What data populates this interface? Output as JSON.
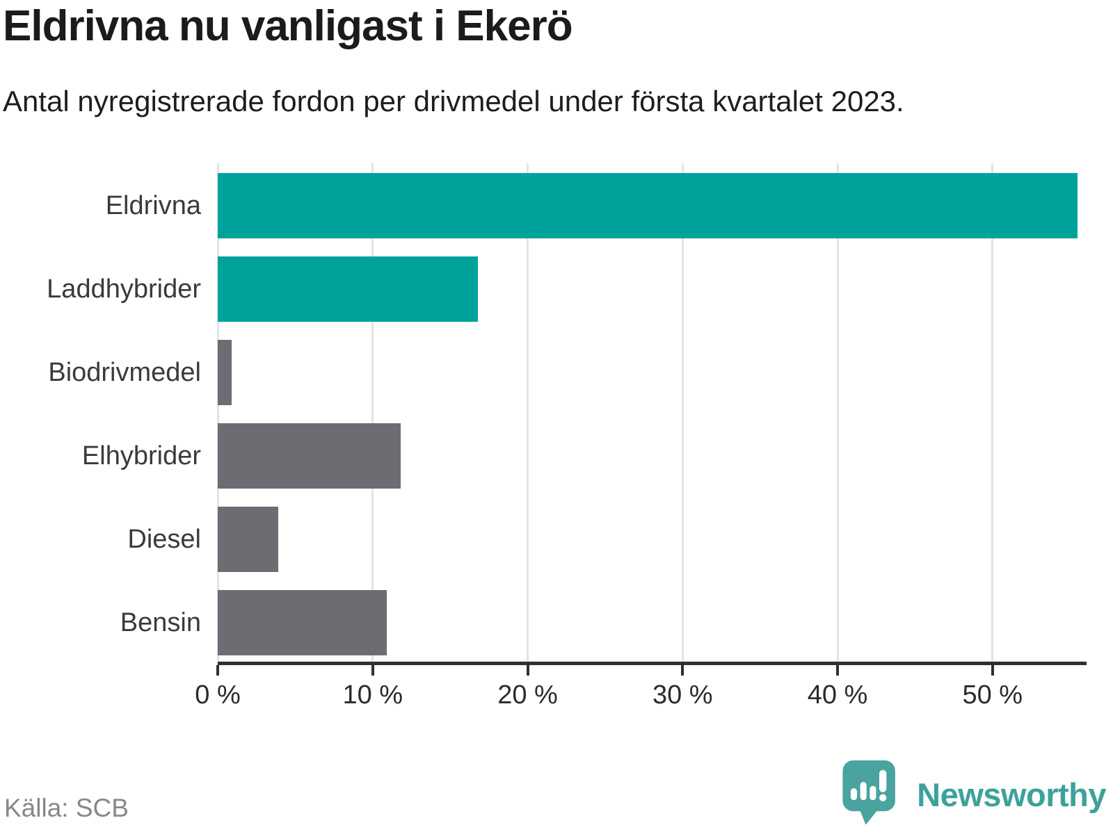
{
  "header": {
    "title": "Eldrivna nu vanligast i Ekerö",
    "subtitle": "Antal nyregistrerade fordon per drivmedel under första kvartalet 2023."
  },
  "chart_data": {
    "type": "bar",
    "orientation": "horizontal",
    "title": "Eldrivna nu vanligast i Ekerö",
    "subtitle": "Antal nyregistrerade fordon per drivmedel under första kvartalet 2023.",
    "categories": [
      "Eldrivna",
      "Laddhybrider",
      "Biodrivmedel",
      "Elhybrider",
      "Diesel",
      "Bensin"
    ],
    "values": [
      55.5,
      16.8,
      0.9,
      11.8,
      3.9,
      10.9
    ],
    "unit": "%",
    "bar_colors": [
      "#00a39b",
      "#00a39b",
      "#6c6c72",
      "#6c6c72",
      "#6c6c72",
      "#6c6c72"
    ],
    "xlabel": "",
    "ylabel": "",
    "xlim": [
      0,
      55.8
    ],
    "x_ticks": [
      0,
      10,
      20,
      30,
      40,
      50
    ],
    "x_tick_labels": [
      "0 %",
      "10 %",
      "20 %",
      "30 %",
      "40 %",
      "50 %"
    ],
    "grid": true,
    "legend": false
  },
  "colors": {
    "teal": "#00a39b",
    "gray": "#6c6c72",
    "gridline": "#e3e3e5",
    "axis": "#2f2f2f",
    "source_text": "#87878b",
    "logo_teal": "#3da19b",
    "logo_icon_fill": "#4aa39e"
  },
  "footer": {
    "source": "Källa: SCB",
    "logo_text": "Newsworthy",
    "logo_icon": "newsworthy-speech-bubble-bar-chart-icon"
  }
}
